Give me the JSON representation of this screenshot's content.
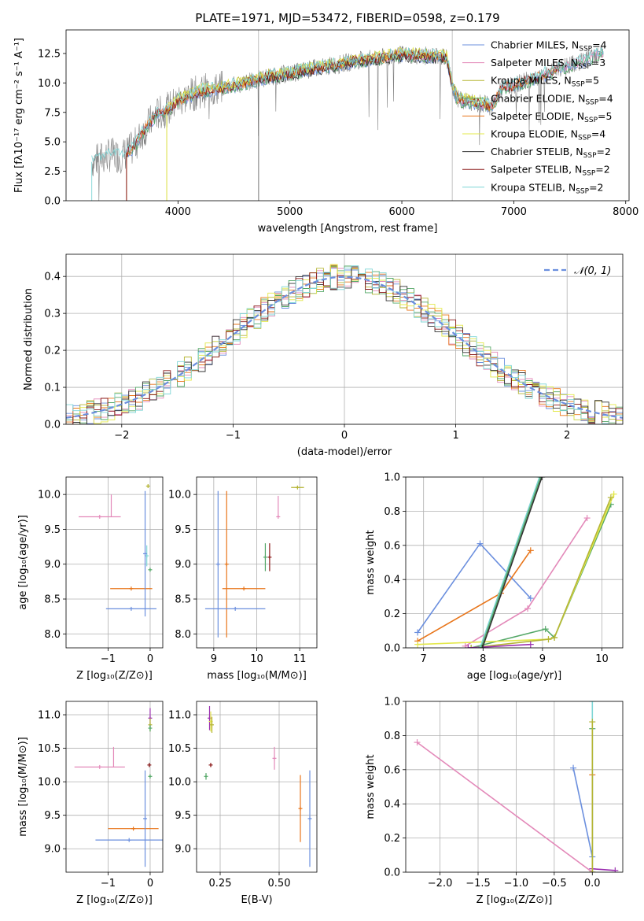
{
  "colors": {
    "chabrier_miles": "#6b8fde",
    "salpeter_miles": "#e389b9",
    "kroupa_miles": "#b5b535",
    "chabrier_elodie": "#55a868",
    "salpeter_elodie": "#e8751a",
    "kroupa_elodie": "#e3e84a",
    "chabrier_stelib": "#333333",
    "salpeter_stelib": "#8b1a1a",
    "kroupa_stelib": "#7fd6d6",
    "purple": "#9b30b0",
    "spectrum_gray": "#808080",
    "normal_curve": "#6b8fde"
  },
  "chart_data": [
    {
      "id": "spectrum",
      "type": "line",
      "title": "PLATE=1971, MJD=53472, FIBERID=0598, z=0.179",
      "xlabel": "wavelength [Angstrom, rest frame]",
      "ylabel": "Flux [fλ10⁻¹⁷ erg cm⁻² s⁻¹ A⁻¹]",
      "xlim": [
        3000,
        8030
      ],
      "ylim": [
        0,
        14.5
      ],
      "xticks": [
        "4000",
        "5000",
        "6000",
        "7000",
        "8000"
      ],
      "xtick_values": [
        4000,
        5000,
        6000,
        7000,
        8000
      ],
      "yticks": [
        "0.0",
        "2.5",
        "5.0",
        "7.5",
        "10.0",
        "12.5"
      ],
      "ytick_values": [
        0,
        2.5,
        5,
        7.5,
        10,
        12.5
      ],
      "legend_position": "top-right",
      "legend": [
        {
          "label": "Chabrier MILES, N",
          "sub": "SSP",
          "suffix": "=4",
          "color": "#6b8fde"
        },
        {
          "label": "Salpeter MILES, N",
          "sub": "SSP",
          "suffix": "=3",
          "color": "#e389b9"
        },
        {
          "label": "Kroupa MILES, N",
          "sub": "SSP",
          "suffix": "=5",
          "color": "#b5b535"
        },
        {
          "label": "Chabrier ELODIE, N",
          "sub": "SSP",
          "suffix": "=4",
          "color": "#55a868"
        },
        {
          "label": "Salpeter ELODIE, N",
          "sub": "SSP",
          "suffix": "=5",
          "color": "#e8751a"
        },
        {
          "label": "Kroupa ELODIE, N",
          "sub": "SSP",
          "suffix": "=4",
          "color": "#e3e84a"
        },
        {
          "label": "Chabrier STELIB, N",
          "sub": "SSP",
          "suffix": "=2",
          "color": "#333333"
        },
        {
          "label": "Salpeter STELIB, N",
          "sub": "SSP",
          "suffix": "=2",
          "color": "#8b1a1a"
        },
        {
          "label": "Kroupa STELIB, N",
          "sub": "SSP",
          "suffix": "=2",
          "color": "#7fd6d6"
        }
      ],
      "continuum": {
        "x": [
          3230,
          3400,
          3500,
          3600,
          3700,
          3800,
          3900,
          4000,
          4200,
          4400,
          4600,
          4800,
          5000,
          5200,
          5400,
          5600,
          5800,
          6000,
          6200,
          6400,
          6450,
          6500,
          6600,
          6700,
          6800,
          6900,
          7000,
          7200,
          7400,
          7600,
          7800
        ],
        "y": [
          3.3,
          3.9,
          3.8,
          4.5,
          6.0,
          7.3,
          7.7,
          8.5,
          9.3,
          9.6,
          10.0,
          10.5,
          10.8,
          11.2,
          11.5,
          11.9,
          12.1,
          12.4,
          12.3,
          12.2,
          9.8,
          8.6,
          8.4,
          8.3,
          8.0,
          9.6,
          9.8,
          10.5,
          11.2,
          11.8,
          12.6
        ]
      }
    },
    {
      "id": "residuals",
      "type": "line",
      "xlabel": "(data-model)/error",
      "ylabel": "Normed distribution",
      "xlim": [
        -2.5,
        2.5
      ],
      "ylim": [
        0,
        0.46
      ],
      "xticks": [
        "−2",
        "−1",
        "0",
        "1",
        "2"
      ],
      "xtick_values": [
        -2,
        -1,
        0,
        1,
        2
      ],
      "yticks": [
        "0.0",
        "0.1",
        "0.2",
        "0.3",
        "0.4"
      ],
      "ytick_values": [
        0,
        0.1,
        0.2,
        0.3,
        0.4
      ],
      "legend_position": "top-right",
      "legend_label": "𝒩(0, 1)",
      "hist_edges_start": -2.5,
      "hist_bin_width": 0.1,
      "hist": [
        0.03,
        0.02,
        0.03,
        0.04,
        0.05,
        0.06,
        0.08,
        0.06,
        0.09,
        0.1,
        0.12,
        0.1,
        0.13,
        0.16,
        0.14,
        0.18,
        0.2,
        0.17,
        0.22,
        0.19,
        0.24,
        0.23,
        0.27,
        0.25,
        0.3,
        0.28,
        0.32,
        0.3,
        0.35,
        0.31,
        0.38,
        0.33,
        0.4,
        0.36,
        0.39,
        0.34,
        0.4,
        0.37,
        0.41,
        0.33,
        0.36,
        0.3,
        0.33,
        0.27,
        0.3,
        0.24,
        0.26,
        0.2,
        0.22,
        0.16,
        0.19,
        0.13,
        0.15,
        0.1,
        0.12,
        0.08,
        0.09,
        0.06,
        0.07,
        0.05,
        0.06,
        0.05,
        0.04,
        0.06,
        0.05,
        0.04,
        0.05,
        0.05,
        0.05,
        0.04,
        0.06,
        0.05,
        0.05,
        0.04,
        0.05,
        0.04,
        0.05,
        0.05,
        0.04,
        0.05
      ],
      "series_colors": [
        "#6b8fde",
        "#e389b9",
        "#b5b535",
        "#55a868",
        "#e8751a",
        "#e3e84a",
        "#333333",
        "#8b1a1a",
        "#7fd6d6"
      ]
    },
    {
      "id": "z-age",
      "type": "scatter",
      "xlabel": "Z [log₁₀(Z/Z⊙)]",
      "ylabel": "age  [log₁₀(age/yr)]",
      "xlim": [
        -2.0,
        0.3
      ],
      "ylim": [
        7.8,
        10.25
      ],
      "xticks": [
        "−1",
        "0"
      ],
      "xtick_values": [
        -1,
        0
      ],
      "yticks": [
        "8.0",
        "8.5",
        "9.0",
        "9.5",
        "10.0"
      ],
      "ytick_values": [
        8.0,
        8.5,
        9.0,
        9.5,
        10.0
      ],
      "points": [
        {
          "x": -0.05,
          "y": 10.12,
          "xerr": 0.03,
          "yerr": 0.02,
          "color": "#b5b535"
        },
        {
          "x": -1.2,
          "y": 9.68,
          "xerr": 0.5,
          "yerr": 0.0,
          "color": "#e389b9",
          "hook": 0.32
        },
        {
          "x": -0.08,
          "y": 9.12,
          "xerr": 0.0,
          "yerr": 0.15,
          "color": "#7fd6d6"
        },
        {
          "x": -0.45,
          "y": 8.65,
          "xerr": 0.5,
          "yerr": 0.0,
          "color": "#e8751a"
        },
        {
          "x": -0.45,
          "y": 8.36,
          "xerr": 0.6,
          "yerr": 0.0,
          "color": "#6b8fde"
        },
        {
          "x": -0.12,
          "y": 9.15,
          "xerr": 0.0,
          "yerr": 0.9,
          "color": "#6b8fde"
        },
        {
          "x": 0.0,
          "y": 8.92,
          "xerr": 0.0,
          "yerr": 0.02,
          "color": "#55a868"
        }
      ]
    },
    {
      "id": "mass-age",
      "type": "scatter",
      "xlabel": "mass [log₁₀(M/M⊙)]",
      "ylabel": "",
      "xlim": [
        8.6,
        11.4
      ],
      "ylim": [
        7.8,
        10.25
      ],
      "xticks": [
        "9",
        "10",
        "11"
      ],
      "xtick_values": [
        9,
        10,
        11
      ],
      "yticks": [
        "8.0",
        "8.5",
        "9.0",
        "9.5",
        "10.0"
      ],
      "ytick_values": [
        8.0,
        8.5,
        9.0,
        9.5,
        10.0
      ],
      "points": [
        {
          "x": 10.95,
          "y": 10.1,
          "xerr": 0.15,
          "yerr": 0.02,
          "color": "#b5b535"
        },
        {
          "x": 10.5,
          "y": 9.68,
          "xerr": 0.0,
          "yerr": 0.0,
          "color": "#e389b9",
          "hook": 0.3
        },
        {
          "x": 10.2,
          "y": 9.1,
          "xerr": 0.0,
          "yerr": 0.2,
          "color": "#55a868"
        },
        {
          "x": 10.3,
          "y": 9.1,
          "xerr": 0.0,
          "yerr": 0.2,
          "color": "#8b1a1a"
        },
        {
          "x": 9.7,
          "y": 8.65,
          "xerr": 0.5,
          "yerr": 0.0,
          "color": "#e8751a"
        },
        {
          "x": 9.3,
          "y": 9.0,
          "xerr": 0.0,
          "yerr": 1.05,
          "color": "#e8751a"
        },
        {
          "x": 9.5,
          "y": 8.36,
          "xerr": 0.7,
          "yerr": 0.0,
          "color": "#6b8fde"
        },
        {
          "x": 9.1,
          "y": 9.0,
          "xerr": 0.0,
          "yerr": 1.05,
          "color": "#6b8fde"
        }
      ]
    },
    {
      "id": "age-weight",
      "type": "line",
      "xlabel": "age  [log₁₀(age/yr)]",
      "ylabel": "mass weight",
      "xlim": [
        6.7,
        10.35
      ],
      "ylim": [
        0,
        1.0
      ],
      "xticks": [
        "7",
        "8",
        "9",
        "10"
      ],
      "xtick_values": [
        7,
        8,
        9,
        10
      ],
      "yticks": [
        "0.0",
        "0.2",
        "0.4",
        "0.6",
        "0.8",
        "1.0"
      ],
      "ytick_values": [
        0,
        0.2,
        0.4,
        0.6,
        0.8,
        1.0
      ],
      "series": [
        {
          "color": "#6b8fde",
          "x": [
            6.9,
            7.95,
            8.8
          ],
          "y": [
            0.09,
            0.61,
            0.29
          ]
        },
        {
          "color": "#e8751a",
          "x": [
            6.9,
            8.3,
            8.8
          ],
          "y": [
            0.04,
            0.32,
            0.57
          ]
        },
        {
          "color": "#e389b9",
          "x": [
            7.7,
            8.75,
            9.75
          ],
          "y": [
            0.01,
            0.23,
            0.76
          ]
        },
        {
          "color": "#55a868",
          "x": [
            7.8,
            9.05,
            9.2,
            10.15
          ],
          "y": [
            0.0,
            0.11,
            0.06,
            0.84
          ]
        },
        {
          "color": "#e3e84a",
          "x": [
            6.9,
            9.1,
            9.2,
            10.2
          ],
          "y": [
            0.02,
            0.05,
            0.06,
            0.9
          ]
        },
        {
          "color": "#b5b535",
          "x": [
            7.8,
            9.1,
            9.2,
            10.15
          ],
          "y": [
            0.0,
            0.05,
            0.06,
            0.88
          ]
        },
        {
          "color": "#9b30b0",
          "x": [
            7.75,
            8.8
          ],
          "y": [
            0.0,
            0.02
          ]
        },
        {
          "color": "#7fd6d6",
          "x": [
            7.95,
            8.95
          ],
          "y": [
            0.0,
            1.0
          ]
        },
        {
          "color": "#55a868",
          "x": [
            7.97,
            8.97
          ],
          "y": [
            0.0,
            1.0
          ]
        },
        {
          "color": "#333333",
          "x": [
            7.99,
            8.99
          ],
          "y": [
            0.0,
            1.0
          ]
        }
      ]
    },
    {
      "id": "z-mass",
      "type": "scatter",
      "xlabel": "Z [log₁₀(Z/Z⊙)]",
      "ylabel": "mass [log₁₀(M/M⊙)]",
      "xlim": [
        -2.0,
        0.3
      ],
      "ylim": [
        8.65,
        11.2
      ],
      "xticks": [
        "−1",
        "0"
      ],
      "xtick_values": [
        -1,
        0
      ],
      "yticks": [
        "9.0",
        "9.5",
        "10.0",
        "10.5",
        "11.0"
      ],
      "ytick_values": [
        9.0,
        9.5,
        10.0,
        10.5,
        11.0
      ],
      "points": [
        {
          "x": -1.2,
          "y": 10.22,
          "xerr": 0.6,
          "yerr": 0.0,
          "color": "#e389b9",
          "hook": 0.3
        },
        {
          "x": 0.0,
          "y": 10.95,
          "xerr": 0.0,
          "yerr": 0.15,
          "color": "#9b30b0"
        },
        {
          "x": 0.0,
          "y": 10.85,
          "xerr": 0.0,
          "yerr": 0.1,
          "color": "#b5b535"
        },
        {
          "x": 0.0,
          "y": 10.8,
          "xerr": 0.0,
          "yerr": 0.05,
          "color": "#55a868"
        },
        {
          "x": -0.02,
          "y": 10.25,
          "xerr": 0.0,
          "yerr": 0.03,
          "color": "#8b1a1a"
        },
        {
          "x": 0.0,
          "y": 10.08,
          "xerr": 0.0,
          "yerr": 0.03,
          "color": "#55a868"
        },
        {
          "x": -0.4,
          "y": 9.3,
          "xerr": 0.6,
          "yerr": 0.0,
          "color": "#e8751a"
        },
        {
          "x": -0.5,
          "y": 9.13,
          "xerr": 0.8,
          "yerr": 0.0,
          "color": "#6b8fde"
        },
        {
          "x": -0.12,
          "y": 9.45,
          "xerr": 0.0,
          "yerr": 0.72,
          "color": "#6b8fde"
        }
      ]
    },
    {
      "id": "ebv-mass",
      "type": "scatter",
      "xlabel": "E(B-V)",
      "ylabel": "",
      "xlim": [
        0.15,
        0.66
      ],
      "ylim": [
        8.65,
        11.2
      ],
      "xticks": [
        "0.25",
        "0.50"
      ],
      "xtick_values": [
        0.25,
        0.5
      ],
      "yticks": [
        "9.0",
        "9.5",
        "10.0",
        "10.5",
        "11.0"
      ],
      "ytick_values": [
        9.0,
        9.5,
        10.0,
        10.5,
        11.0
      ],
      "points": [
        {
          "x": 0.205,
          "y": 10.95,
          "xerr": 0.0,
          "yerr": 0.18,
          "color": "#9b30b0"
        },
        {
          "x": 0.21,
          "y": 10.9,
          "xerr": 0.0,
          "yerr": 0.15,
          "color": "#e3e84a"
        },
        {
          "x": 0.215,
          "y": 10.85,
          "xerr": 0.0,
          "yerr": 0.12,
          "color": "#b5b535"
        },
        {
          "x": 0.21,
          "y": 10.25,
          "xerr": 0.0,
          "yerr": 0.03,
          "color": "#8b1a1a"
        },
        {
          "x": 0.19,
          "y": 10.08,
          "xerr": 0.0,
          "yerr": 0.05,
          "color": "#55a868"
        },
        {
          "x": 0.48,
          "y": 10.35,
          "xerr": 0.0,
          "yerr": 0.17,
          "color": "#e389b9"
        },
        {
          "x": 0.59,
          "y": 9.6,
          "xerr": 0.0,
          "yerr": 0.5,
          "color": "#e8751a"
        },
        {
          "x": 0.63,
          "y": 9.45,
          "xerr": 0.0,
          "yerr": 0.72,
          "color": "#6b8fde"
        }
      ]
    },
    {
      "id": "z-weight",
      "type": "line",
      "xlabel": "Z [log₁₀(Z/Z⊙)]",
      "ylabel": "mass weight",
      "xlim": [
        -2.45,
        0.4
      ],
      "ylim": [
        0,
        1.0
      ],
      "xticks": [
        "−2.0",
        "−1.5",
        "−1.0",
        "−0.5",
        "0.0"
      ],
      "xtick_values": [
        -2.0,
        -1.5,
        -1.0,
        -0.5,
        0.0
      ],
      "yticks": [
        "0.0",
        "0.2",
        "0.4",
        "0.6",
        "0.8",
        "1.0"
      ],
      "ytick_values": [
        0,
        0.2,
        0.4,
        0.6,
        0.8,
        1.0
      ],
      "series": [
        {
          "color": "#e389b9",
          "x": [
            -2.3,
            0.0
          ],
          "y": [
            0.76,
            0.0
          ]
        },
        {
          "color": "#6b8fde",
          "x": [
            -0.25,
            0.0
          ],
          "y": [
            0.61,
            0.09
          ]
        },
        {
          "color": "#9b30b0",
          "x": [
            0.0,
            0.3
          ],
          "y": [
            0.02,
            0.01
          ]
        },
        {
          "color": "#e8751a",
          "x": [
            0.0,
            0.0
          ],
          "y": [
            0.0,
            0.57
          ]
        },
        {
          "color": "#7fd6d6",
          "x": [
            0.0,
            0.0
          ],
          "y": [
            0.0,
            1.0
          ]
        },
        {
          "color": "#55a868",
          "x": [
            0.0,
            0.0
          ],
          "y": [
            0.0,
            0.84
          ]
        },
        {
          "color": "#b5b535",
          "x": [
            0.0,
            0.0
          ],
          "y": [
            0.0,
            0.88
          ]
        }
      ]
    }
  ]
}
